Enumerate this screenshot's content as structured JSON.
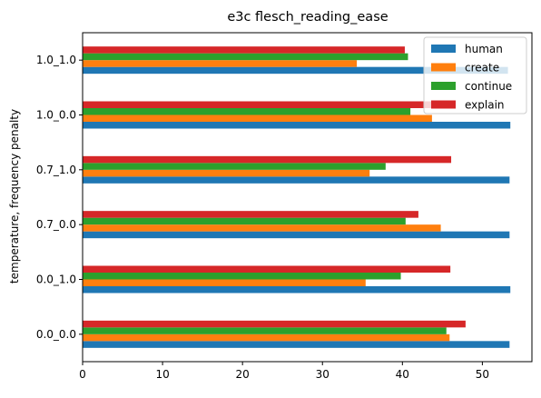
{
  "chart_data": {
    "type": "bar",
    "orientation": "horizontal",
    "title": "e3c flesch_reading_ease",
    "xlabel": "",
    "ylabel": "temperature, frequency penalty",
    "xlim": [
      0,
      56.2
    ],
    "x_ticks": [
      0,
      10,
      20,
      30,
      40,
      50
    ],
    "grid": false,
    "legend_position": "top-right",
    "categories": [
      "0.0_0.0",
      "0.0_1.0",
      "0.7_0.0",
      "0.7_1.0",
      "1.0_0.0",
      "1.0_1.0"
    ],
    "series": [
      {
        "name": "human",
        "color": "#1f77b4",
        "values": [
          53.4,
          53.5,
          53.4,
          53.4,
          53.5,
          53.2
        ]
      },
      {
        "name": "create",
        "color": "#ff7f0e",
        "values": [
          45.9,
          35.4,
          44.8,
          35.9,
          43.7,
          34.3
        ]
      },
      {
        "name": "continue",
        "color": "#2ca02c",
        "values": [
          45.5,
          39.8,
          40.4,
          37.9,
          41.0,
          40.7
        ]
      },
      {
        "name": "explain",
        "color": "#d62728",
        "values": [
          47.9,
          46.0,
          42.0,
          46.1,
          46.5,
          40.3
        ]
      }
    ]
  }
}
